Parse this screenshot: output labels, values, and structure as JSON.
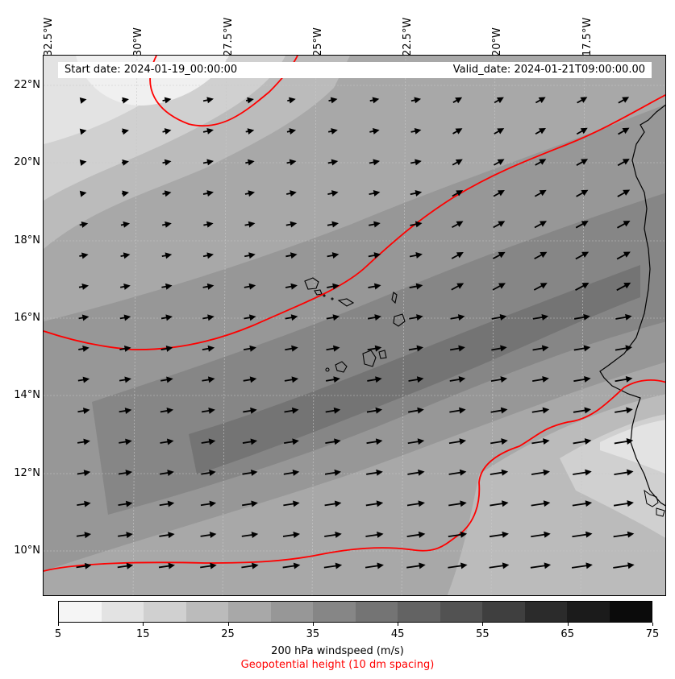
{
  "info": {
    "start_date": "Start date: 2024-01-19_00:00:00",
    "valid_date": "Valid_date: 2024-01-21T09:00:00.00"
  },
  "longitude_labels": [
    "32.5°W",
    "30°W",
    "27.5°W",
    "25°W",
    "22.5°W",
    "20°W",
    "17.5°W"
  ],
  "latitude_labels": [
    "22°N",
    "20°N",
    "18°N",
    "16°N",
    "14°N",
    "12°N",
    "10°N"
  ],
  "colorbar": {
    "ticks": [
      "5",
      "15",
      "25",
      "35",
      "45",
      "55",
      "65",
      "75"
    ],
    "levels": [
      5,
      10,
      15,
      20,
      25,
      30,
      35,
      40,
      45,
      50,
      55,
      60,
      65,
      70,
      75
    ],
    "colors": [
      "#f5f5f5",
      "#e3e3e3",
      "#d0d0d0",
      "#bbbbbb",
      "#a8a8a8",
      "#979797",
      "#868686",
      "#747474",
      "#636363",
      "#525252",
      "#3f3f3f",
      "#2b2b2b",
      "#1b1b1b",
      "#0b0b0b"
    ],
    "label": "200 hPa windspeed (m/s)",
    "contour_label": "Geopotential height (10 dm spacing)",
    "contour_color": "#ff0000"
  }
}
